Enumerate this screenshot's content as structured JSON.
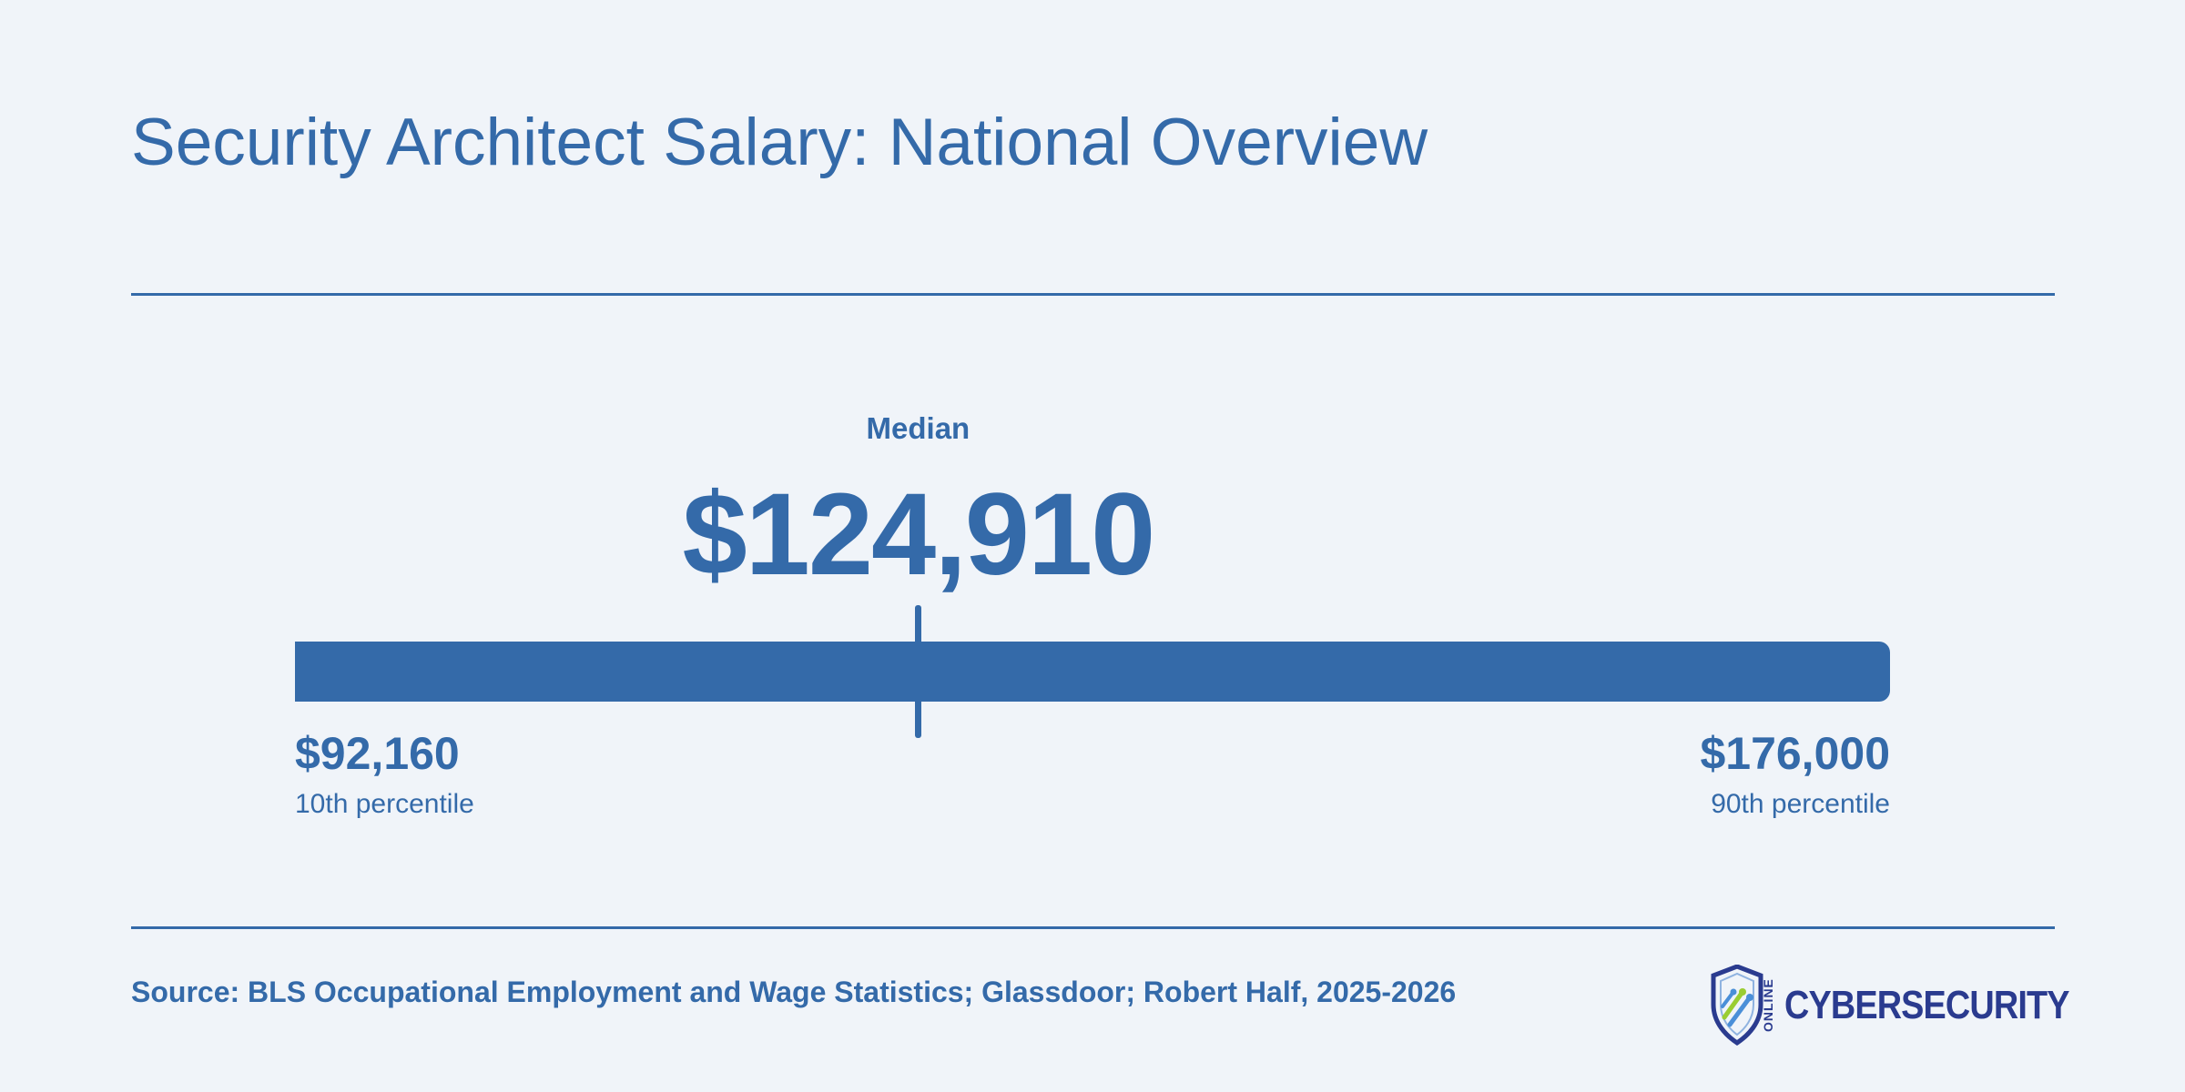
{
  "title": "Security Architect Salary: National Overview",
  "chart_data": {
    "type": "range",
    "median_label": "Median",
    "median": 124910,
    "median_display": "$124,910",
    "min": 92160,
    "min_display": "$92,160",
    "min_label": "10th percentile",
    "max": 176000,
    "max_display": "$176,000",
    "max_label": "90th percentile"
  },
  "source": "Source: BLS Occupational Employment and Wage Statistics; Glassdoor; Robert Half, 2025-2026",
  "logo": {
    "text": "CYBERSECURITY",
    "small_text": "ONLINE",
    "icon": "shield-circuit-icon"
  },
  "colors": {
    "accent": "#346aa9",
    "background": "#f0f4f9",
    "logo_text": "#2a3b8f",
    "logo_green": "#9acd32"
  }
}
